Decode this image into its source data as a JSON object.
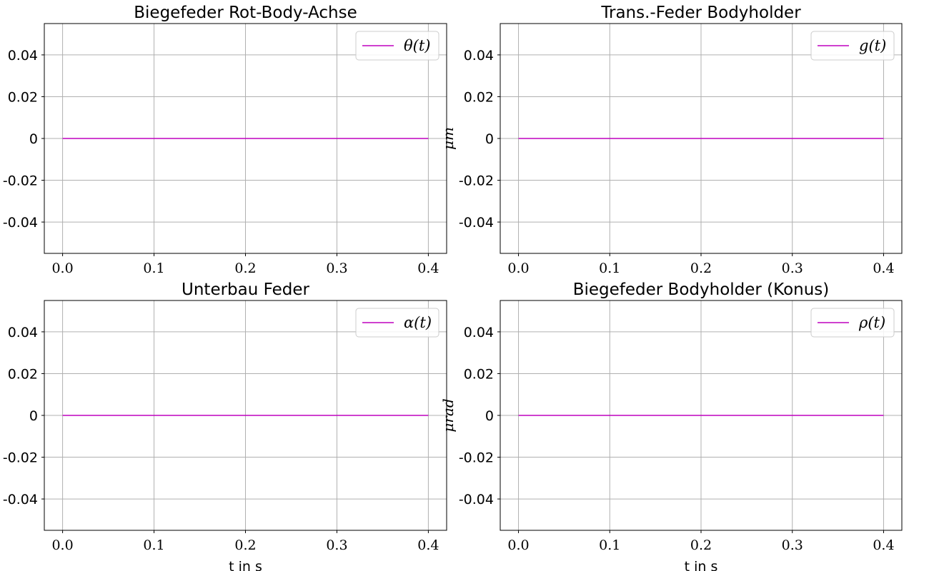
{
  "chart_data": [
    {
      "type": "line",
      "title": "Biegefeder Rot-Body-Achse",
      "xlabel": "",
      "ylabel": "",
      "x": [
        0.0,
        0.4
      ],
      "series": [
        {
          "name": "θ(t)",
          "color": "#bf00bf",
          "values": [
            0,
            0
          ]
        }
      ],
      "xlim": [
        -0.02,
        0.42
      ],
      "ylim": [
        -0.055,
        0.055
      ],
      "xticks": [
        "0.0",
        "0.1",
        "0.2",
        "0.3",
        "0.4"
      ],
      "yticks": [
        "-0.04",
        "-0.02",
        "0",
        "0.02",
        "0.04"
      ],
      "grid": true,
      "legend": "top-right"
    },
    {
      "type": "line",
      "title": "Trans.-Feder Bodyholder",
      "xlabel": "",
      "ylabel": "μm",
      "x": [
        0.0,
        0.4
      ],
      "series": [
        {
          "name": "g(t)",
          "color": "#bf00bf",
          "values": [
            0,
            0
          ]
        }
      ],
      "xlim": [
        -0.02,
        0.42
      ],
      "ylim": [
        -0.055,
        0.055
      ],
      "xticks": [
        "0.0",
        "0.1",
        "0.2",
        "0.3",
        "0.4"
      ],
      "yticks": [
        "-0.04",
        "-0.02",
        "0",
        "0.02",
        "0.04"
      ],
      "grid": true,
      "legend": "top-right"
    },
    {
      "type": "line",
      "title": "Unterbau Feder",
      "xlabel": "t in s",
      "ylabel": "",
      "x": [
        0.0,
        0.4
      ],
      "series": [
        {
          "name": "α(t)",
          "color": "#bf00bf",
          "values": [
            0,
            0
          ]
        }
      ],
      "xlim": [
        -0.02,
        0.42
      ],
      "ylim": [
        -0.055,
        0.055
      ],
      "xticks": [
        "0.0",
        "0.1",
        "0.2",
        "0.3",
        "0.4"
      ],
      "yticks": [
        "-0.04",
        "-0.02",
        "0",
        "0.02",
        "0.04"
      ],
      "grid": true,
      "legend": "top-right"
    },
    {
      "type": "line",
      "title": "Biegefeder Bodyholder (Konus)",
      "xlabel": "t in s",
      "ylabel": "μrad",
      "x": [
        0.0,
        0.4
      ],
      "series": [
        {
          "name": "ρ(t)",
          "color": "#bf00bf",
          "values": [
            0,
            0
          ]
        }
      ],
      "xlim": [
        -0.02,
        0.42
      ],
      "ylim": [
        -0.055,
        0.055
      ],
      "xticks": [
        "0.0",
        "0.1",
        "0.2",
        "0.3",
        "0.4"
      ],
      "yticks": [
        "-0.04",
        "-0.02",
        "0",
        "0.02",
        "0.04"
      ],
      "grid": true,
      "legend": "top-right"
    }
  ]
}
